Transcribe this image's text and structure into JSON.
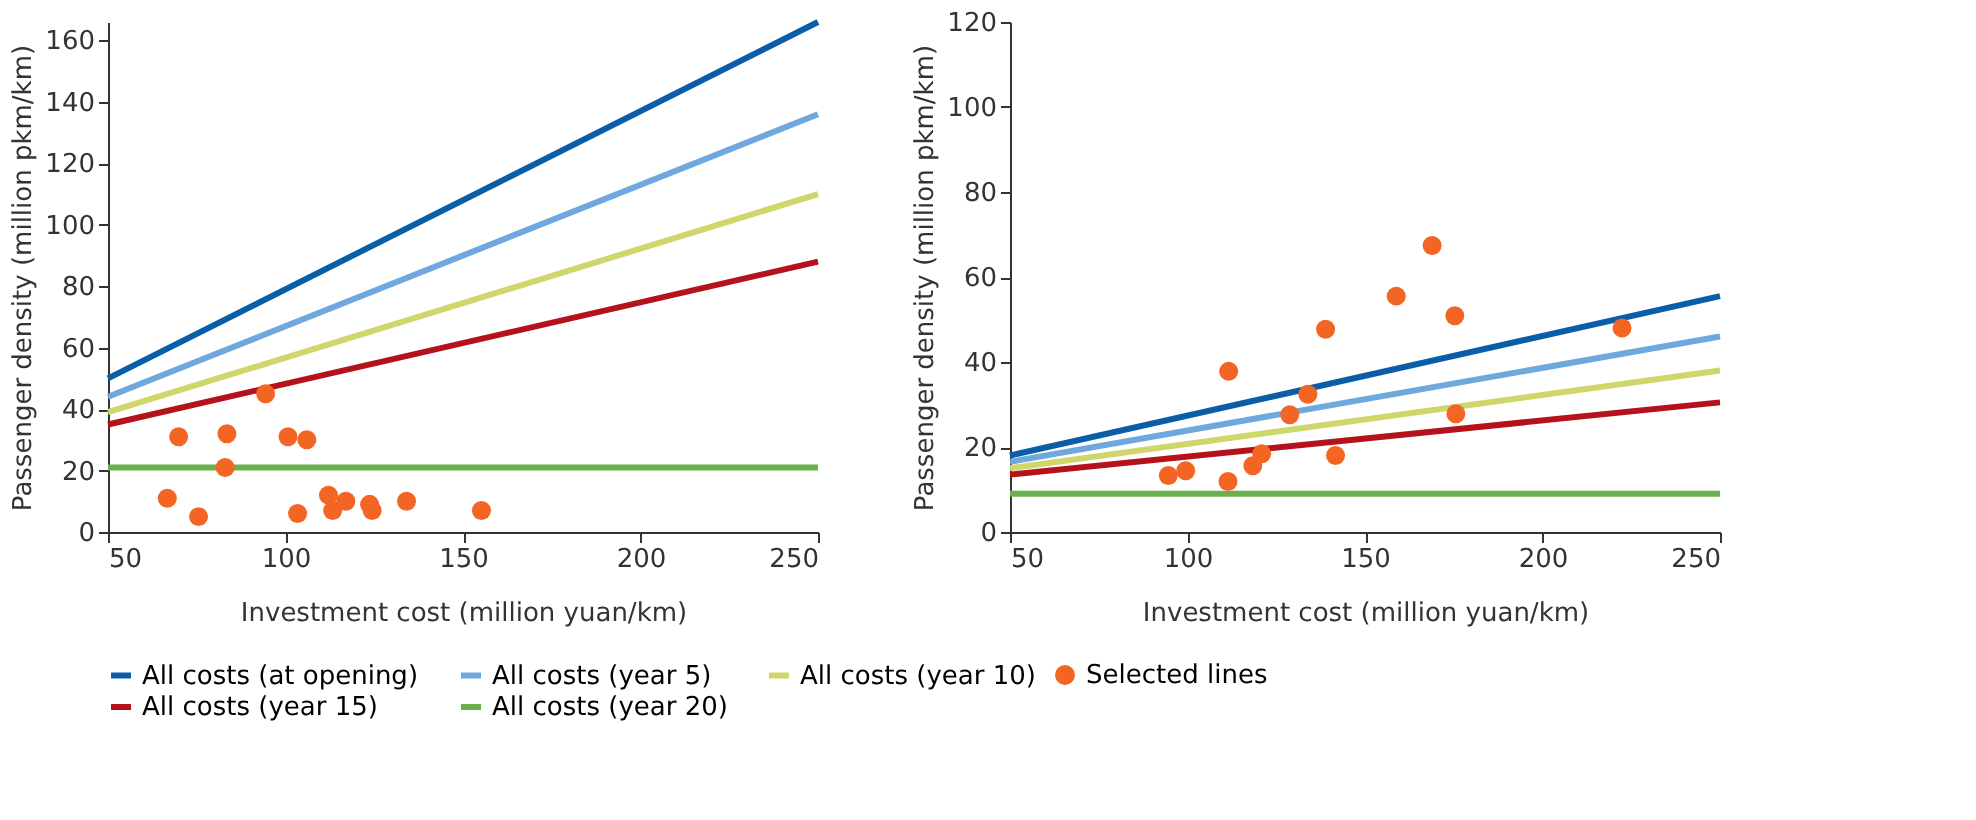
{
  "chart_data": [
    {
      "type": "line",
      "xlabel": "Investment cost (million yuan/km)",
      "ylabel": "Passenger density (million pkm/km)",
      "xlim": [
        50,
        250
      ],
      "xticks": [
        50,
        100,
        150,
        200,
        250
      ],
      "ylim": [
        0,
        166
      ],
      "yticks": [
        0,
        20,
        40,
        60,
        80,
        100,
        120,
        140,
        160
      ],
      "grid": false,
      "legend": "bottom",
      "series": [
        {
          "name": "All costs (at opening)",
          "color": "#0a5ea8",
          "x": [
            50,
            250
          ],
          "values": [
            50,
            166
          ]
        },
        {
          "name": "All costs (year 5)",
          "color": "#6fa8dc",
          "x": [
            50,
            250
          ],
          "values": [
            44,
            136
          ]
        },
        {
          "name": "All costs (year 10)",
          "color": "#cfd66a",
          "x": [
            50,
            250
          ],
          "values": [
            39,
            110
          ]
        },
        {
          "name": "All costs (year 15)",
          "color": "#b5121b",
          "x": [
            50,
            250
          ],
          "values": [
            35,
            88
          ]
        },
        {
          "name": "All costs (year 20)",
          "color": "#6ab04c",
          "x": [
            50,
            250
          ],
          "values": [
            21,
            21
          ]
        },
        {
          "name": "Selected lines",
          "type": "scatter",
          "marker": "circle",
          "color": "#f26522",
          "x": [
            66.7,
            69.9,
            75.5,
            83.5,
            83,
            94.4,
            100.7,
            106,
            103.4,
            112.1,
            113.3,
            117,
            123.7,
            124.4,
            134.1,
            155.2
          ],
          "values": [
            11,
            31,
            5,
            32,
            21,
            45,
            31,
            30,
            6,
            12,
            7,
            10,
            9,
            7,
            10,
            7
          ]
        }
      ]
    },
    {
      "type": "line",
      "xlabel": "Investment cost (million yuan/km)",
      "ylabel": "Passenger density (million pkm/km)",
      "xlim": [
        50,
        250
      ],
      "xticks": [
        50,
        100,
        150,
        200,
        250
      ],
      "ylim": [
        0,
        120
      ],
      "yticks": [
        0,
        20,
        40,
        60,
        80,
        100,
        120
      ],
      "grid": false,
      "legend": "bottom",
      "series": [
        {
          "name": "All costs (at opening)",
          "color": "#0a5ea8",
          "x": [
            50,
            250
          ],
          "values": [
            18,
            55.5
          ]
        },
        {
          "name": "All costs (year 5)",
          "color": "#6fa8dc",
          "x": [
            50,
            250
          ],
          "values": [
            16.5,
            46
          ]
        },
        {
          "name": "All costs (year 10)",
          "color": "#cfd66a",
          "x": [
            50,
            250
          ],
          "values": [
            15,
            38
          ]
        },
        {
          "name": "All costs (year 15)",
          "color": "#b5121b",
          "x": [
            50,
            250
          ],
          "values": [
            13.5,
            30.5
          ]
        },
        {
          "name": "All costs (year 20)",
          "color": "#6ab04c",
          "x": [
            50,
            250
          ],
          "values": [
            9,
            9
          ]
        },
        {
          "name": "Selected lines",
          "type": "scatter",
          "marker": "circle",
          "color": "#f26522",
          "x": [
            94.6,
            99.5,
            111.4,
            111.6,
            118.4,
            120.9,
            128.8,
            133.9,
            138.9,
            141.7,
            158.8,
            168.9,
            175.3,
            175.6,
            222.4
          ],
          "values": [
            13.3,
            14.4,
            11.9,
            37.8,
            15.6,
            18.4,
            27.6,
            32.4,
            47.7,
            18,
            55.5,
            67.4,
            50.9,
            27.8,
            48
          ]
        }
      ]
    }
  ]
}
